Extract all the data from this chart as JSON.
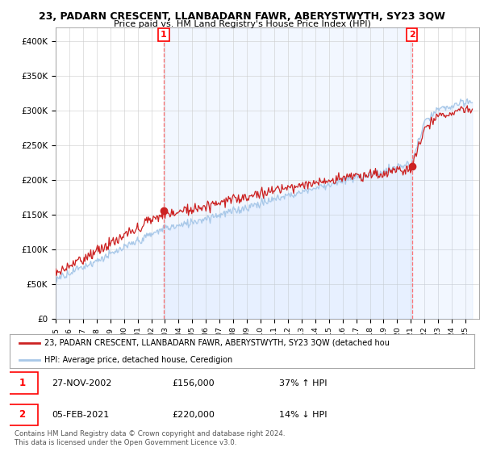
{
  "title": "23, PADARN CRESCENT, LLANBADARN FAWR, ABERYSTWYTH, SY23 3QW",
  "subtitle": "Price paid vs. HM Land Registry's House Price Index (HPI)",
  "ylim": [
    0,
    420000
  ],
  "yticks": [
    0,
    50000,
    100000,
    150000,
    200000,
    250000,
    300000,
    350000,
    400000
  ],
  "ytick_labels": [
    "£0",
    "£50K",
    "£100K",
    "£150K",
    "£200K",
    "£250K",
    "£300K",
    "£350K",
    "£400K"
  ],
  "hpi_color": "#a8c8e8",
  "hpi_fill_color": "#ddeeff",
  "price_color": "#cc2222",
  "sale1_year_f": 2002.91,
  "sale2_year_f": 2021.08,
  "sale1_price": 156000,
  "sale2_price": 220000,
  "legend_label_price": "23, PADARN CRESCENT, LLANBADARN FAWR, ABERYSTWYTH, SY23 3QW (detached hou",
  "legend_label_hpi": "HPI: Average price, detached house, Ceredigion",
  "table_row1": [
    "1",
    "27-NOV-2002",
    "£156,000",
    "37% ↑ HPI"
  ],
  "table_row2": [
    "2",
    "05-FEB-2021",
    "£220,000",
    "14% ↓ HPI"
  ],
  "footer": "Contains HM Land Registry data © Crown copyright and database right 2024.\nThis data is licensed under the Open Government Licence v3.0.",
  "bg_color": "#ffffff"
}
